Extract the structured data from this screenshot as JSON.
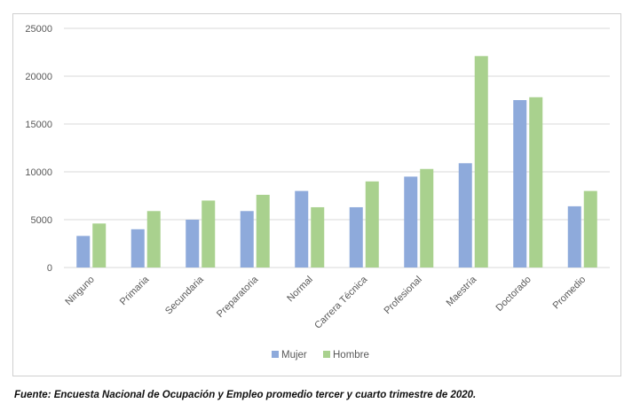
{
  "chart_data": {
    "type": "bar",
    "title": "",
    "xlabel": "",
    "ylabel": "",
    "ylim": [
      0,
      25000
    ],
    "yticks": [
      0,
      5000,
      10000,
      15000,
      20000,
      25000
    ],
    "grid": true,
    "legend_position": "bottom",
    "categories": [
      "Ninguno",
      "Primaria",
      "Secundaria",
      "Preparatoria",
      "Normal",
      "Carrera Técnica",
      "Profesional",
      "Maestría",
      "Doctorado",
      "Promedio"
    ],
    "series": [
      {
        "name": "Mujer",
        "color": "#8eaadb",
        "values": [
          3300,
          4000,
          5000,
          5900,
          8000,
          6300,
          9500,
          10900,
          17500,
          6400
        ]
      },
      {
        "name": "Hombre",
        "color": "#a9d18e",
        "values": [
          4600,
          5900,
          7000,
          7600,
          6300,
          9000,
          10300,
          22100,
          17800,
          8000
        ]
      }
    ]
  },
  "source": {
    "text": "Fuente: Encuesta Nacional de Ocupación y Empleo promedio tercer y cuarto trimestre de 2020."
  }
}
